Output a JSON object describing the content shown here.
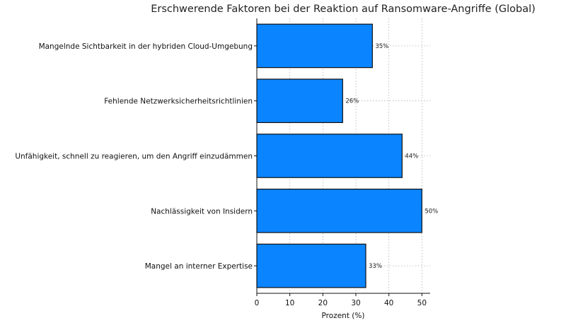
{
  "chart_data": {
    "type": "bar",
    "orientation": "horizontal",
    "title": "Erschwerende Faktoren bei der Reaktion auf Ransomware-Angriffe (Global)",
    "xlabel": "Prozent (%)",
    "ylabel": "",
    "categories": [
      "Mangelnde Sichtbarkeit in der hybriden Cloud-Umgebung",
      "Fehlende Netzwerksicherheitsrichtlinien",
      "Unfähigkeit, schnell zu reagieren, um den Angriff einzudämmen",
      "Nachlässigkeit von Insidern",
      "Mangel an interner Expertise"
    ],
    "values": [
      35,
      26,
      44,
      50,
      33
    ],
    "value_labels": [
      "35%",
      "26%",
      "44%",
      "50%",
      "33%"
    ],
    "xlim": [
      0,
      52.5
    ],
    "xticks": [
      0,
      10,
      20,
      30,
      40,
      50
    ],
    "xtick_labels": [
      "0",
      "10",
      "20",
      "30",
      "40",
      "50"
    ],
    "grid": true,
    "bar_color": "#0a84ff",
    "edge_color": "#111111"
  }
}
